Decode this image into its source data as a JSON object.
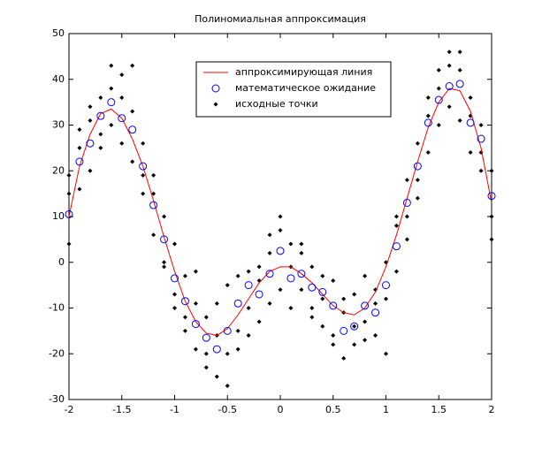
{
  "chart_data": {
    "type": "line",
    "title": "Полиномиальная аппроксимация",
    "xlim": [
      -2,
      2
    ],
    "xticks": [
      -2,
      -1.5,
      -1,
      -0.5,
      0,
      0.5,
      1,
      1.5,
      2
    ],
    "ylim": [
      -30,
      50
    ],
    "yticks": [
      -30,
      -20,
      -10,
      0,
      10,
      20,
      30,
      40,
      50
    ],
    "legend": "top",
    "series": [
      {
        "name": "аппроксимирующая линия",
        "mark": "line",
        "color": "#ff0000",
        "x": [
          -2,
          -1.9,
          -1.8,
          -1.7,
          -1.6,
          -1.5,
          -1.4,
          -1.3,
          -1.2,
          -1.1,
          -1,
          -0.9,
          -0.8,
          -0.7,
          -0.6,
          -0.5,
          -0.4,
          -0.3,
          -0.2,
          -0.1,
          0,
          0.1,
          0.2,
          0.3,
          0.4,
          0.5,
          0.6,
          0.7,
          0.8,
          0.9,
          1,
          1.1,
          1.2,
          1.3,
          1.4,
          1.5,
          1.6,
          1.7,
          1.8,
          1.9,
          2
        ],
        "values": [
          10,
          21,
          28,
          32.5,
          33.5,
          31.5,
          27,
          21,
          13.5,
          5.5,
          -2,
          -8.5,
          -13,
          -15.5,
          -16,
          -14.5,
          -11.5,
          -8,
          -4.5,
          -2,
          -1,
          -1,
          -2.5,
          -4.5,
          -7,
          -9.5,
          -11,
          -11.5,
          -10,
          -6.5,
          -1,
          6,
          14,
          22,
          29.5,
          35,
          38,
          37.5,
          33,
          25,
          13
        ]
      },
      {
        "name": "математическое ожидание",
        "mark": "circle",
        "color": "#0000ff",
        "x": [
          -2,
          -1.9,
          -1.8,
          -1.7,
          -1.6,
          -1.5,
          -1.4,
          -1.3,
          -1.2,
          -1.1,
          -1,
          -0.9,
          -0.8,
          -0.7,
          -0.6,
          -0.5,
          -0.4,
          -0.3,
          -0.2,
          -0.1,
          0,
          0.1,
          0.2,
          0.3,
          0.4,
          0.5,
          0.6,
          0.7,
          0.8,
          0.9,
          1,
          1.1,
          1.2,
          1.3,
          1.4,
          1.5,
          1.6,
          1.7,
          1.8,
          1.9,
          2
        ],
        "values": [
          10.5,
          22,
          26,
          32,
          35,
          31.5,
          29,
          21,
          12.5,
          5,
          -3.5,
          -8.5,
          -13.5,
          -16.5,
          -19,
          -15,
          -9,
          -5,
          -7,
          -2.5,
          2.5,
          -3.5,
          -2.5,
          -5.5,
          -6.5,
          -9.5,
          -15,
          -14,
          -9.5,
          -11,
          -5,
          3.5,
          13,
          21,
          30.5,
          35.5,
          38.5,
          39,
          30.5,
          27,
          14.5
        ]
      },
      {
        "name": "исходные точки",
        "mark": "dot",
        "color": "#000000",
        "x": [
          -2,
          -2,
          -2,
          -1.9,
          -1.9,
          -1.9,
          -1.8,
          -1.8,
          -1.8,
          -1.7,
          -1.7,
          -1.7,
          -1.6,
          -1.6,
          -1.6,
          -1.5,
          -1.5,
          -1.5,
          -1.4,
          -1.4,
          -1.4,
          -1.3,
          -1.3,
          -1.3,
          -1.2,
          -1.2,
          -1.2,
          -1.1,
          -1.1,
          -1.1,
          -1,
          -1,
          -1,
          -0.9,
          -0.9,
          -0.9,
          -0.8,
          -0.8,
          -0.8,
          -0.7,
          -0.7,
          -0.7,
          -0.6,
          -0.6,
          -0.6,
          -0.5,
          -0.5,
          -0.5,
          -0.4,
          -0.4,
          -0.4,
          -0.3,
          -0.3,
          -0.3,
          -0.2,
          -0.2,
          -0.2,
          -0.1,
          -0.1,
          -0.1,
          0,
          0,
          0,
          0.1,
          0.1,
          0.1,
          0.2,
          0.2,
          0.2,
          0.3,
          0.3,
          0.3,
          0.4,
          0.4,
          0.4,
          0.5,
          0.5,
          0.5,
          0.6,
          0.6,
          0.6,
          0.7,
          0.7,
          0.7,
          0.8,
          0.8,
          0.8,
          0.9,
          0.9,
          0.9,
          1,
          1,
          1,
          1.1,
          1.1,
          1.1,
          1.2,
          1.2,
          1.2,
          1.3,
          1.3,
          1.3,
          1.4,
          1.4,
          1.4,
          1.5,
          1.5,
          1.5,
          1.6,
          1.6,
          1.6,
          1.7,
          1.7,
          1.7,
          1.8,
          1.8,
          1.8,
          1.9,
          1.9,
          1.9,
          2,
          2,
          2
        ],
        "values": [
          4,
          15,
          19,
          16,
          25,
          29,
          20,
          31,
          34,
          28,
          36,
          25,
          43,
          30,
          38,
          41,
          26,
          36,
          43,
          22,
          33,
          26,
          15,
          19,
          19,
          6,
          15,
          10,
          -1,
          0,
          4,
          -10,
          -7,
          -3,
          -15,
          -12,
          -9,
          -19,
          -2,
          -20,
          -12,
          -23,
          -25,
          -16,
          -9,
          -27,
          -20,
          -5,
          -3,
          -15,
          -19,
          -10,
          -2,
          -16,
          -13,
          -1,
          -4,
          6,
          -9,
          2,
          10,
          -6,
          7,
          4,
          -10,
          -1,
          -6,
          2,
          4,
          -10,
          -1,
          -12,
          -14,
          -3,
          -8,
          -16,
          -4,
          -18,
          -21,
          -8,
          -11,
          -18,
          -7,
          -14,
          -17,
          -3,
          -13,
          -16,
          -6,
          -9,
          -20,
          0,
          -8,
          -2,
          10,
          8,
          18,
          5,
          10,
          26,
          14,
          18,
          36,
          24,
          32,
          42,
          30,
          38,
          46,
          34,
          43,
          46,
          31,
          42,
          36,
          24,
          32,
          30,
          20,
          24,
          20,
          5,
          10
        ]
      }
    ]
  }
}
